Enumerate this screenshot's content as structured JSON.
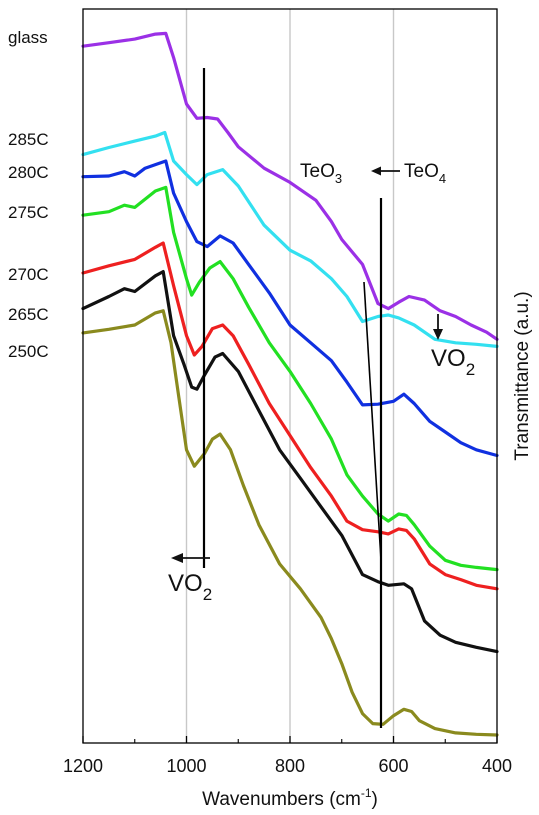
{
  "chart_data": {
    "type": "line",
    "xlabel_main": "Wavenumbers (cm",
    "xlabel_sup": "-1",
    "xlabel_tail": ")",
    "ylabel": "Transmittance (a.u.)",
    "xlim": [
      1200,
      400
    ],
    "ylim": [
      0,
      100
    ],
    "x_ticks": [
      "1200",
      "1000",
      "800",
      "600",
      "400"
    ],
    "x_tick_values": [
      1200,
      1000,
      800,
      600,
      400
    ],
    "grid_x": [
      1000,
      800,
      600
    ],
    "annotations": {
      "teo3_main": "TeO",
      "teo3_sub": "3",
      "teo4_main": "TeO",
      "teo4_sub": "4",
      "vo2_left_main": "VO",
      "vo2_left_sub": "2",
      "vo2_right_main": "VO",
      "vo2_right_sub": "2"
    },
    "series": [
      {
        "name": "glass",
        "color": "#9b30e6",
        "points": [
          [
            1200,
            96.6
          ],
          [
            1150,
            97.1
          ],
          [
            1100,
            97.6
          ],
          [
            1060,
            98.3
          ],
          [
            1040,
            98.4
          ],
          [
            1025,
            95.0
          ],
          [
            1000,
            88.5
          ],
          [
            980,
            86.5
          ],
          [
            960,
            86.6
          ],
          [
            940,
            86.4
          ],
          [
            920,
            84.5
          ],
          [
            900,
            82.5
          ],
          [
            850,
            79.5
          ],
          [
            800,
            77.5
          ],
          [
            750,
            75.0
          ],
          [
            720,
            72.0
          ],
          [
            700,
            69.5
          ],
          [
            660,
            66.0
          ],
          [
            630,
            60.5
          ],
          [
            610,
            59.8
          ],
          [
            590,
            60.7
          ],
          [
            570,
            61.5
          ],
          [
            540,
            61.0
          ],
          [
            510,
            59.5
          ],
          [
            480,
            58.7
          ],
          [
            450,
            57.5
          ],
          [
            420,
            56.5
          ],
          [
            400,
            55.5
          ]
        ]
      },
      {
        "name": "285C",
        "color": "#33e0f0",
        "points": [
          [
            1200,
            81.4
          ],
          [
            1150,
            82.4
          ],
          [
            1100,
            83.3
          ],
          [
            1060,
            84.0
          ],
          [
            1042,
            84.5
          ],
          [
            1025,
            80.5
          ],
          [
            1000,
            78.6
          ],
          [
            980,
            77.2
          ],
          [
            960,
            78.6
          ],
          [
            930,
            79.3
          ],
          [
            900,
            77.0
          ],
          [
            850,
            71.5
          ],
          [
            800,
            68.0
          ],
          [
            760,
            66.5
          ],
          [
            720,
            64.0
          ],
          [
            690,
            61.5
          ],
          [
            660,
            58.0
          ],
          [
            630,
            58.7
          ],
          [
            610,
            58.9
          ],
          [
            590,
            58.5
          ],
          [
            560,
            57.5
          ],
          [
            520,
            55.5
          ],
          [
            480,
            55.0
          ],
          [
            440,
            54.8
          ],
          [
            400,
            54.5
          ]
        ]
      },
      {
        "name": "280C",
        "color": "#1030e0",
        "points": [
          [
            1200,
            78.3
          ],
          [
            1150,
            78.4
          ],
          [
            1120,
            79.0
          ],
          [
            1100,
            78.4
          ],
          [
            1080,
            79.5
          ],
          [
            1060,
            80.0
          ],
          [
            1040,
            80.5
          ],
          [
            1025,
            76.0
          ],
          [
            1000,
            72.0
          ],
          [
            980,
            69.2
          ],
          [
            960,
            68.5
          ],
          [
            935,
            70.0
          ],
          [
            910,
            69.0
          ],
          [
            880,
            66.0
          ],
          [
            840,
            62.0
          ],
          [
            800,
            57.5
          ],
          [
            760,
            55.0
          ],
          [
            720,
            52.5
          ],
          [
            690,
            49.5
          ],
          [
            660,
            46.3
          ],
          [
            630,
            46.4
          ],
          [
            600,
            46.8
          ],
          [
            580,
            47.8
          ],
          [
            560,
            46.5
          ],
          [
            530,
            44.0
          ],
          [
            500,
            42.5
          ],
          [
            470,
            41.0
          ],
          [
            440,
            40.0
          ],
          [
            400,
            39.2
          ]
        ]
      },
      {
        "name": "275C",
        "color": "#22e022",
        "points": [
          [
            1200,
            72.9
          ],
          [
            1150,
            73.4
          ],
          [
            1120,
            74.3
          ],
          [
            1100,
            74.0
          ],
          [
            1060,
            76.3
          ],
          [
            1040,
            76.8
          ],
          [
            1025,
            70.5
          ],
          [
            1000,
            64.0
          ],
          [
            990,
            61.7
          ],
          [
            975,
            63.5
          ],
          [
            955,
            65.5
          ],
          [
            935,
            66.4
          ],
          [
            910,
            64.0
          ],
          [
            880,
            60.0
          ],
          [
            840,
            55.0
          ],
          [
            800,
            51.0
          ],
          [
            760,
            46.5
          ],
          [
            720,
            41.5
          ],
          [
            690,
            36.5
          ],
          [
            660,
            33.5
          ],
          [
            630,
            31.0
          ],
          [
            610,
            30.0
          ],
          [
            590,
            31.0
          ],
          [
            575,
            30.8
          ],
          [
            560,
            29.5
          ],
          [
            530,
            26.5
          ],
          [
            500,
            24.5
          ],
          [
            470,
            23.8
          ],
          [
            440,
            23.5
          ],
          [
            400,
            23.2
          ]
        ]
      },
      {
        "name": "270C",
        "color": "#ee2020",
        "points": [
          [
            1200,
            64.8
          ],
          [
            1150,
            65.8
          ],
          [
            1100,
            66.7
          ],
          [
            1060,
            68.4
          ],
          [
            1045,
            69.0
          ],
          [
            1025,
            63.0
          ],
          [
            1000,
            56.0
          ],
          [
            985,
            53.3
          ],
          [
            970,
            54.5
          ],
          [
            950,
            57.0
          ],
          [
            930,
            57.5
          ],
          [
            910,
            56.0
          ],
          [
            880,
            52.0
          ],
          [
            840,
            46.5
          ],
          [
            800,
            42.0
          ],
          [
            760,
            37.5
          ],
          [
            720,
            33.5
          ],
          [
            690,
            30.0
          ],
          [
            660,
            28.8
          ],
          [
            630,
            28.5
          ],
          [
            610,
            28.2
          ],
          [
            590,
            28.9
          ],
          [
            575,
            28.7
          ],
          [
            560,
            27.5
          ],
          [
            530,
            24.0
          ],
          [
            500,
            22.5
          ],
          [
            470,
            21.8
          ],
          [
            440,
            21.0
          ],
          [
            400,
            20.5
          ]
        ]
      },
      {
        "name": "265C",
        "color": "#111111",
        "points": [
          [
            1200,
            59.8
          ],
          [
            1150,
            61.5
          ],
          [
            1120,
            62.6
          ],
          [
            1100,
            62.2
          ],
          [
            1060,
            64.4
          ],
          [
            1045,
            65.0
          ],
          [
            1025,
            56.0
          ],
          [
            1005,
            52.0
          ],
          [
            990,
            48.8
          ],
          [
            980,
            48.5
          ],
          [
            965,
            50.5
          ],
          [
            945,
            53.0
          ],
          [
            930,
            53.5
          ],
          [
            900,
            51.0
          ],
          [
            860,
            45.5
          ],
          [
            820,
            40.0
          ],
          [
            780,
            36.0
          ],
          [
            740,
            32.0
          ],
          [
            700,
            28.0
          ],
          [
            660,
            22.5
          ],
          [
            630,
            21.5
          ],
          [
            610,
            21.0
          ],
          [
            580,
            21.2
          ],
          [
            565,
            20.5
          ],
          [
            540,
            16.0
          ],
          [
            510,
            14.0
          ],
          [
            480,
            13.0
          ],
          [
            440,
            12.3
          ],
          [
            400,
            11.7
          ]
        ]
      },
      {
        "name": "250C",
        "color": "#8a8a1e",
        "points": [
          [
            1200,
            56.4
          ],
          [
            1150,
            56.9
          ],
          [
            1100,
            57.5
          ],
          [
            1060,
            59.2
          ],
          [
            1045,
            59.5
          ],
          [
            1030,
            55.0
          ],
          [
            1015,
            47.5
          ],
          [
            1000,
            40.0
          ],
          [
            985,
            37.7
          ],
          [
            965,
            39.5
          ],
          [
            950,
            41.5
          ],
          [
            935,
            42.2
          ],
          [
            915,
            40.0
          ],
          [
            890,
            35.0
          ],
          [
            860,
            29.5
          ],
          [
            820,
            24.0
          ],
          [
            780,
            20.5
          ],
          [
            740,
            16.5
          ],
          [
            720,
            13.5
          ],
          [
            700,
            10.0
          ],
          [
            680,
            6.0
          ],
          [
            660,
            3.0
          ],
          [
            640,
            1.6
          ],
          [
            620,
            1.5
          ],
          [
            600,
            2.7
          ],
          [
            580,
            3.6
          ],
          [
            565,
            3.3
          ],
          [
            550,
            2.0
          ],
          [
            520,
            0.9
          ],
          [
            480,
            0.3
          ],
          [
            440,
            0.1
          ],
          [
            400,
            0.0
          ]
        ]
      }
    ]
  }
}
